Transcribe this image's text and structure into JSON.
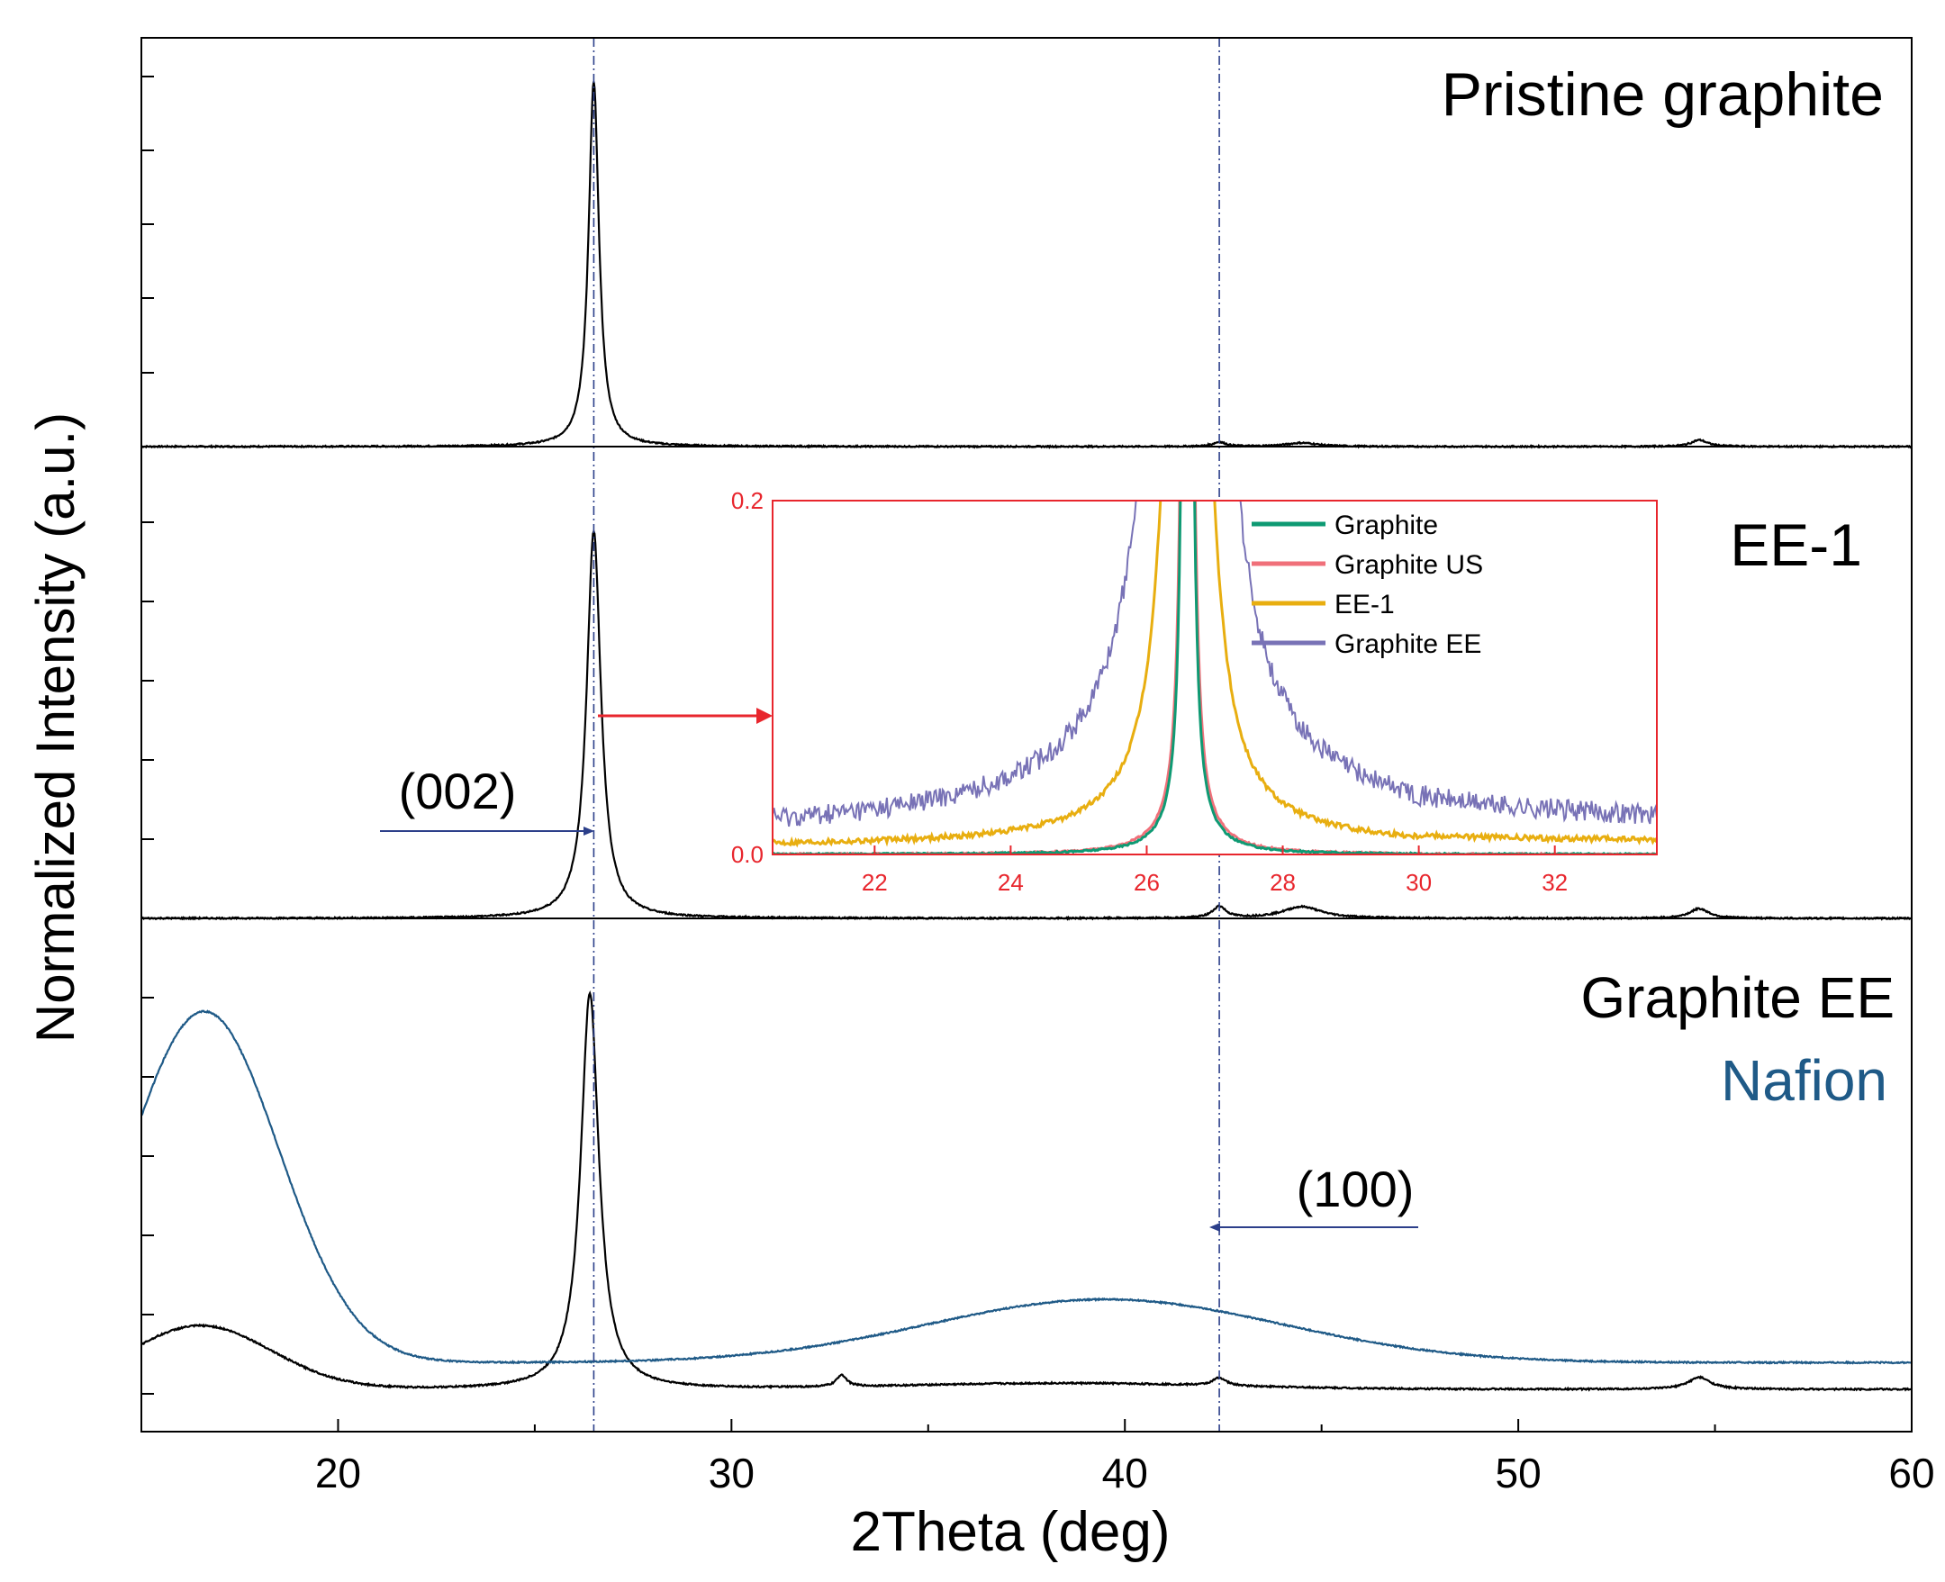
{
  "chart_data": [
    {
      "type": "line",
      "title": "",
      "xlabel": "2Theta (deg)",
      "ylabel": "Normalized Intensity (a.u.)",
      "xlim": [
        15,
        60
      ],
      "x_ticks": [
        20,
        30,
        40,
        50,
        60
      ],
      "layout": "stacked panels",
      "panels": [
        {
          "label": "Pristine graphite",
          "series": [
            {
              "name": "Pristine graphite",
              "color": "#000000",
              "peaks": [
                {
                  "x": 26.5,
                  "height": 1.0,
                  "width": 0.16
                },
                {
                  "x": 42.4,
                  "height": 0.012,
                  "width": 0.2
                },
                {
                  "x": 44.5,
                  "height": 0.01,
                  "width": 0.5
                },
                {
                  "x": 54.6,
                  "height": 0.018,
                  "width": 0.25
                }
              ]
            }
          ]
        },
        {
          "label": "EE-1",
          "series": [
            {
              "name": "EE-1",
              "color": "#000000",
              "peaks": [
                {
                  "x": 26.5,
                  "height": 1.0,
                  "width": 0.22
                },
                {
                  "x": 42.4,
                  "height": 0.03,
                  "width": 0.2
                },
                {
                  "x": 44.5,
                  "height": 0.03,
                  "width": 0.6
                },
                {
                  "x": 54.6,
                  "height": 0.025,
                  "width": 0.3
                }
              ]
            }
          ]
        },
        {
          "label": "Graphite EE",
          "series": [
            {
              "name": "Graphite EE",
              "color": "#000000",
              "peaks": [
                {
                  "x": 26.4,
                  "height": 1.0,
                  "width": 0.28
                },
                {
                  "x": 16.5,
                  "height": 0.16,
                  "width": 1.8
                },
                {
                  "x": 32.8,
                  "height": 0.03,
                  "width": 0.15
                },
                {
                  "x": 38.5,
                  "height": 0.015,
                  "width": 4.0
                },
                {
                  "x": 42.4,
                  "height": 0.02,
                  "width": 0.2
                },
                {
                  "x": 54.6,
                  "height": 0.03,
                  "width": 0.35
                }
              ]
            },
            {
              "name": "Nafion",
              "color": "#1f5a87",
              "peaks": [
                {
                  "x": 16.6,
                  "height": 1.0,
                  "width": 1.9
                },
                {
                  "x": 39.5,
                  "height": 0.18,
                  "width": 4.5
                }
              ]
            }
          ]
        }
      ],
      "annotations": [
        {
          "text": "(002)",
          "x": 26.5
        },
        {
          "text": "(100)",
          "x": 42.4
        }
      ],
      "inset": {
        "type": "line",
        "xlim": [
          20.5,
          33.5
        ],
        "ylim": [
          0.0,
          0.2
        ],
        "x_ticks": [
          22,
          24,
          26,
          28,
          30,
          32
        ],
        "y_ticks": [
          0.0,
          0.2
        ],
        "frame_color": "#e8262d",
        "legend": [
          "Graphite",
          "Graphite US",
          "EE-1",
          "Graphite EE"
        ],
        "legend_position": "top-right",
        "series": [
          {
            "name": "Graphite",
            "color": "#0e9a73",
            "center": 26.6,
            "gamma": 0.045,
            "base": 0.0
          },
          {
            "name": "Graphite US",
            "color": "#f0707a",
            "center": 26.6,
            "gamma": 0.05,
            "base": 0.0
          },
          {
            "name": "EE-1",
            "color": "#e8ae10",
            "center": 26.6,
            "gamma": 0.17,
            "base": 0.005
          },
          {
            "name": "Graphite EE",
            "color": "#7872b6",
            "center": 26.6,
            "gamma": 0.3,
            "base": 0.012
          }
        ]
      }
    }
  ]
}
